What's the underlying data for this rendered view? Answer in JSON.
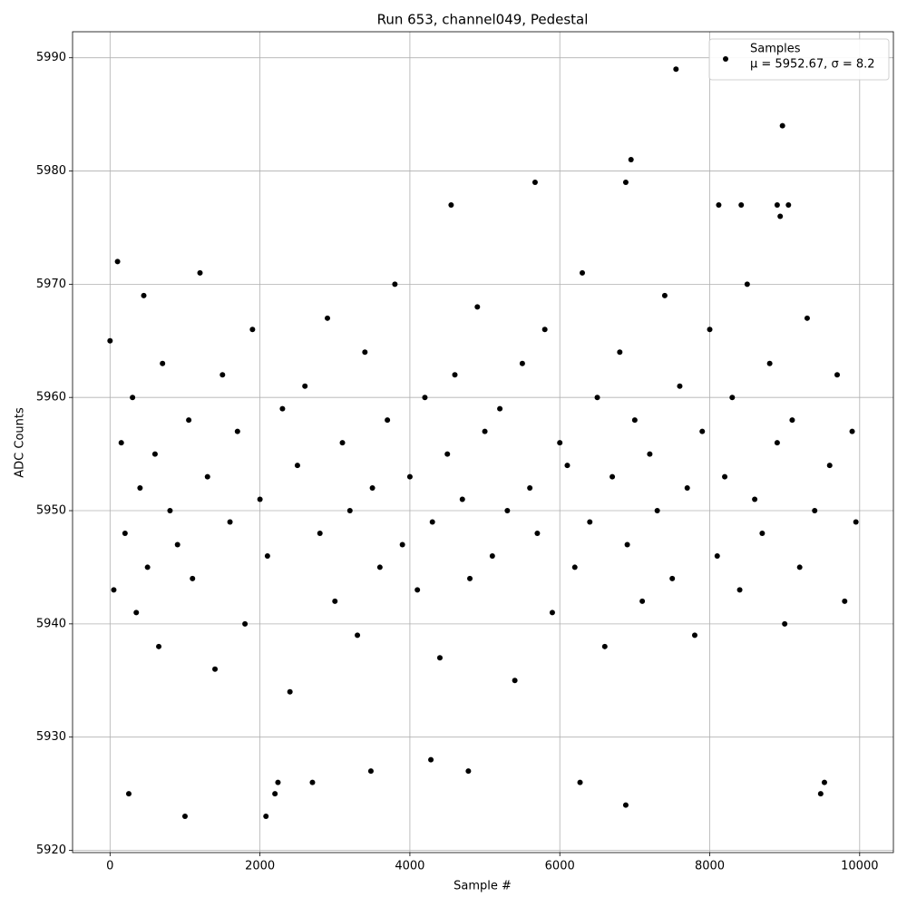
{
  "chart_data": {
    "type": "scatter",
    "title": "Run 653, channel049, Pedestal",
    "x_label": "Sample #",
    "y_label": "ADC Counts",
    "xlim": [
      -500,
      10450
    ],
    "ylim": [
      5919.8,
      5992.3
    ],
    "xticks": [
      0,
      2000,
      4000,
      6000,
      8000,
      10000
    ],
    "yticks": [
      5920,
      5930,
      5940,
      5950,
      5960,
      5970,
      5980,
      5990
    ],
    "grid": true,
    "legend": "upper right",
    "series": [
      {
        "name": "Samples",
        "legend_note": "μ = 5952.67, σ = 8.2",
        "color": "#000000",
        "x": [
          0,
          50,
          100,
          150,
          200,
          300,
          350,
          400,
          450,
          500,
          600,
          650,
          700,
          800,
          900,
          1050,
          1100,
          1200,
          1300,
          1400,
          1500,
          1600,
          1700,
          1800,
          1900,
          2000,
          2100,
          2300,
          2400,
          2500,
          2600,
          2800,
          2900,
          3000,
          3100,
          3200,
          3300,
          3400,
          3500,
          3600,
          3700,
          3800,
          3900,
          4000,
          4100,
          4200,
          4300,
          4400,
          4500,
          4600,
          4700,
          4800,
          4900,
          5000,
          5100,
          5200,
          5300,
          5400,
          5500,
          5600,
          5700,
          5800,
          5900,
          6000,
          6100,
          6200,
          6300,
          6400,
          6500,
          6600,
          6700,
          6800,
          6900,
          7000,
          7100,
          7200,
          7300,
          7400,
          7500,
          7600,
          7700,
          7800,
          7900,
          8000,
          8100,
          8200,
          8300,
          8400,
          8500,
          8600,
          8700,
          8800,
          8900,
          9000,
          9100,
          9200,
          9300,
          9400,
          9600,
          9700,
          9800,
          9900,
          9950,
          250,
          1000,
          2080,
          2200,
          2240,
          2700,
          3480,
          4280,
          4780,
          6270,
          6880,
          9480,
          9530,
          7550,
          8970,
          6950,
          6880,
          5670,
          4550,
          8120,
          8420,
          8900,
          9050,
          8940
        ],
        "values": [
          5965,
          5943,
          5972,
          5956,
          5948,
          5960,
          5941,
          5952,
          5969,
          5945,
          5955,
          5938,
          5963,
          5950,
          5947,
          5958,
          5944,
          5971,
          5953,
          5936,
          5962,
          5949,
          5957,
          5940,
          5966,
          5951,
          5946,
          5959,
          5934,
          5954,
          5961,
          5948,
          5967,
          5942,
          5956,
          5950,
          5939,
          5964,
          5952,
          5945,
          5958,
          5970,
          5947,
          5953,
          5943,
          5960,
          5949,
          5937,
          5955,
          5962,
          5951,
          5944,
          5968,
          5957,
          5946,
          5959,
          5950,
          5935,
          5963,
          5952,
          5948,
          5966,
          5941,
          5956,
          5954,
          5945,
          5971,
          5949,
          5960,
          5938,
          5953,
          5964,
          5947,
          5958,
          5942,
          5955,
          5950,
          5969,
          5944,
          5961,
          5952,
          5939,
          5957,
          5966,
          5946,
          5953,
          5960,
          5943,
          5970,
          5951,
          5948,
          5963,
          5956,
          5940,
          5958,
          5945,
          5967,
          5950,
          5954,
          5962,
          5942,
          5957,
          5949,
          5925,
          5923,
          5923,
          5925,
          5926,
          5926,
          5927,
          5928,
          5927,
          5926,
          5924,
          5925,
          5926,
          5989,
          5984,
          5981,
          5979,
          5979,
          5977,
          5977,
          5977,
          5977,
          5977,
          5976
        ]
      }
    ]
  }
}
